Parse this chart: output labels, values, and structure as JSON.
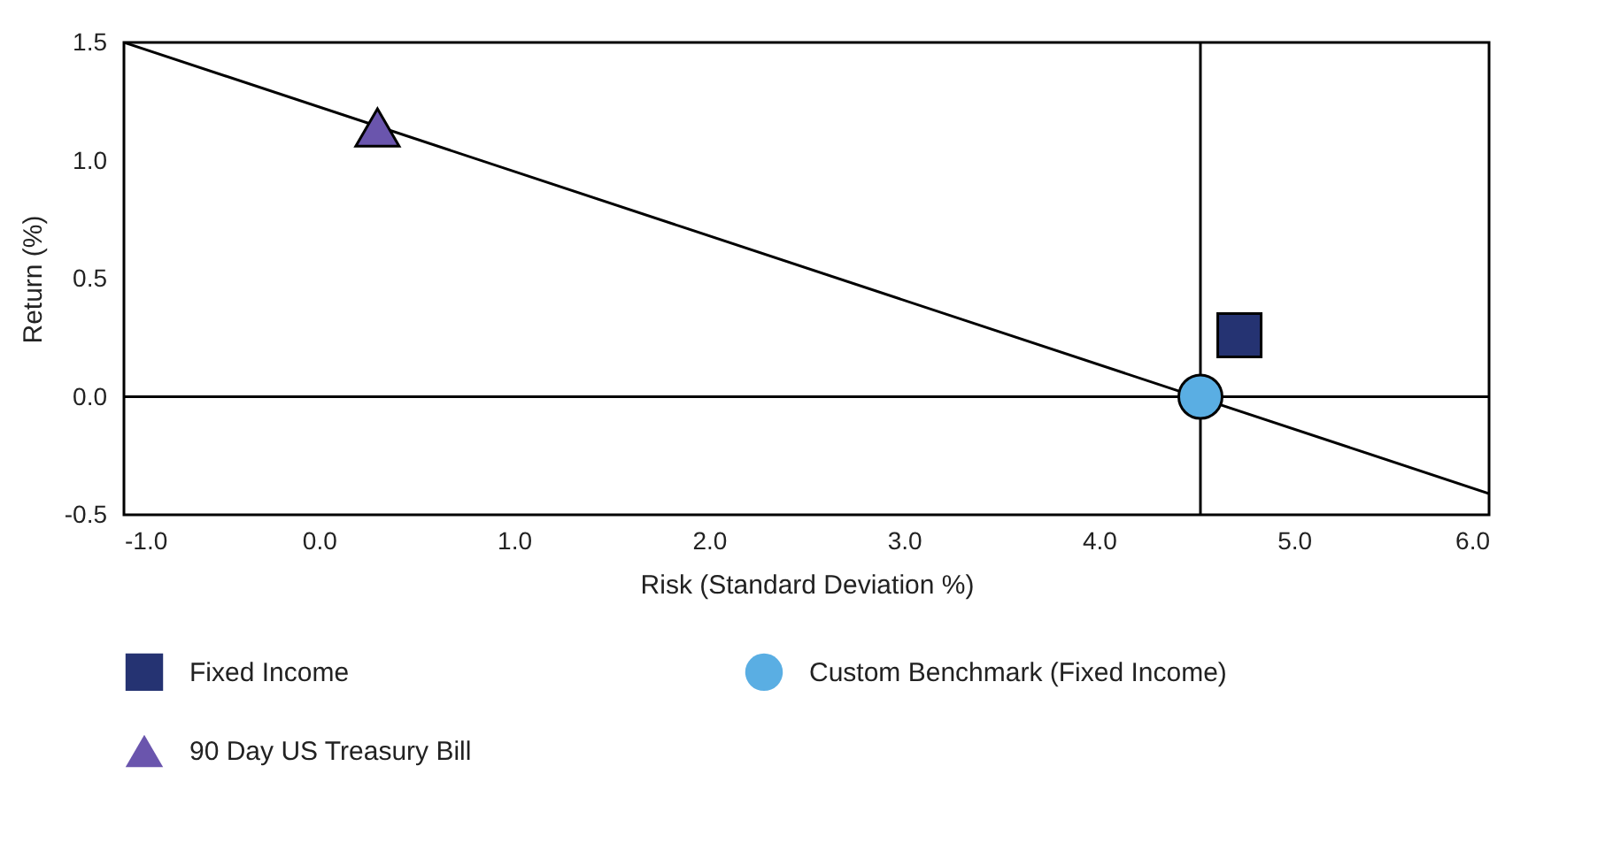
{
  "chart_data": {
    "type": "scatter",
    "xlabel": "Risk (Standard Deviation %)",
    "ylabel": "Return (%)",
    "xlim": [
      -1.0,
      6.0
    ],
    "ylim": [
      -0.5,
      1.5
    ],
    "xticks": [
      {
        "value": -1,
        "label": "-1.0"
      },
      {
        "value": 0,
        "label": "0.0"
      },
      {
        "value": 1,
        "label": "1.0"
      },
      {
        "value": 2,
        "label": "2.0"
      },
      {
        "value": 3,
        "label": "3.0"
      },
      {
        "value": 4,
        "label": "4.0"
      },
      {
        "value": 5,
        "label": "5.0"
      },
      {
        "value": 6,
        "label": "6.0"
      }
    ],
    "yticks": [
      {
        "value": -0.5,
        "label": "-0.5"
      },
      {
        "value": 0,
        "label": "0.0"
      },
      {
        "value": 0.5,
        "label": "0.5"
      },
      {
        "value": 1,
        "label": "1.0"
      },
      {
        "value": 1.5,
        "label": "1.5"
      }
    ],
    "grid": false,
    "legend": "bottom",
    "series": [
      {
        "name": "Fixed Income",
        "color": "#253372",
        "marker": "square",
        "x": [
          4.72
        ],
        "values": [
          0.26
        ]
      },
      {
        "name": "Custom Benchmark (Fixed Income)",
        "color": "#5aaee3",
        "marker": "circle",
        "x": [
          4.52
        ],
        "values": [
          0.0
        ]
      },
      {
        "name": "90 Day US Treasury Bill",
        "color": "#6a55ad",
        "marker": "triangle",
        "x": [
          0.3
        ],
        "values": [
          1.14
        ]
      },
      {
        "type": "line",
        "color": "#000000",
        "line_style": "solid",
        "x": [
          -1.0,
          6.0
        ],
        "values": [
          1.5,
          -0.41
        ]
      }
    ],
    "ref_lines": [
      {
        "axis": "x",
        "value": 4.52,
        "color": "#000000"
      },
      {
        "axis": "y",
        "value": 0.0,
        "color": "#000000"
      }
    ]
  }
}
